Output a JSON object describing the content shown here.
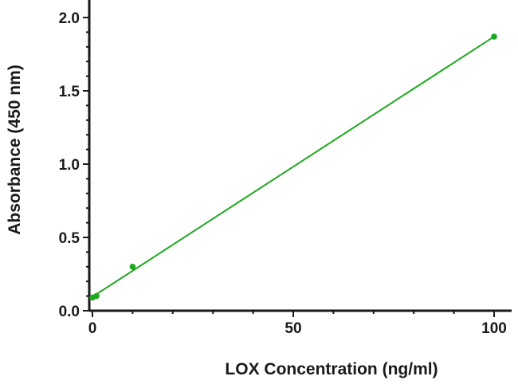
{
  "chart_data": {
    "type": "scatter",
    "title": "",
    "xlabel": "LOX Concentration (ng/ml)",
    "ylabel": "Absorbance (450 nm)",
    "xlim": [
      0,
      100
    ],
    "ylim": [
      0,
      2.0
    ],
    "xticks": [
      0,
      50,
      100
    ],
    "xtick_labels": [
      "0",
      "50",
      "100"
    ],
    "yticks": [
      0.0,
      0.5,
      1.0,
      1.5,
      2.0
    ],
    "ytick_labels": [
      "0.0",
      "0.5",
      "1.0",
      "1.5",
      "2.0"
    ],
    "grid": false,
    "colors": {
      "series": "#1fa81f",
      "axis": "#1a1a1a"
    },
    "points": [
      {
        "x": 0,
        "y": 0.09
      },
      {
        "x": 1,
        "y": 0.1
      },
      {
        "x": 10,
        "y": 0.3
      },
      {
        "x": 100,
        "y": 1.87
      }
    ],
    "fit_line": {
      "type": "linear",
      "x": [
        0,
        100
      ],
      "y": [
        0.095,
        1.87
      ]
    }
  }
}
